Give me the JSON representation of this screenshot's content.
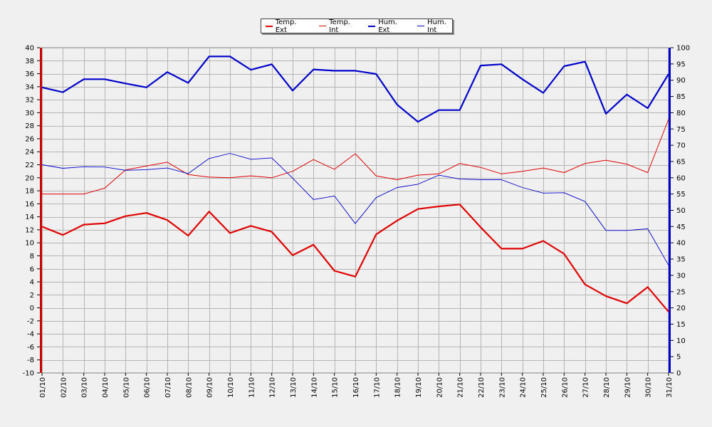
{
  "chart_data": {
    "type": "line",
    "categories": [
      "01/10",
      "02/10",
      "03/10",
      "04/10",
      "05/10",
      "06/10",
      "07/10",
      "08/10",
      "09/10",
      "10/10",
      "11/10",
      "12/10",
      "13/10",
      "14/10",
      "15/10",
      "16/10",
      "17/10",
      "18/10",
      "19/10",
      "20/10",
      "21/10",
      "22/10",
      "23/10",
      "24/10",
      "25/10",
      "26/10",
      "27/10",
      "28/10",
      "29/10",
      "30/10",
      "31/10"
    ],
    "y_left": {
      "min": -10,
      "max": 40,
      "step": 2,
      "color": "#cc0000"
    },
    "y_right": {
      "min": 0,
      "max": 100,
      "step": 5,
      "color": "#0000cc"
    },
    "grid": true,
    "legend_position": "top-center",
    "series": [
      {
        "name": "Temp. Ext",
        "axis": "left",
        "color": "#e00000",
        "width": 2.2,
        "values": [
          12.5,
          11.2,
          12.8,
          13.0,
          14.1,
          14.6,
          13.5,
          11.1,
          14.8,
          11.5,
          12.6,
          11.7,
          8.1,
          9.7,
          5.7,
          4.8,
          11.3,
          13.4,
          15.2,
          15.6,
          15.9,
          12.4,
          9.1,
          9.1,
          10.3,
          8.3,
          3.6,
          1.8,
          0.7,
          3.2,
          -0.6
        ]
      },
      {
        "name": "Temp. Int",
        "axis": "left",
        "color": "#e00000",
        "width": 1,
        "values": [
          17.5,
          17.5,
          17.5,
          18.4,
          21.2,
          21.8,
          22.4,
          20.5,
          20.1,
          20.0,
          20.3,
          20.0,
          21.0,
          22.8,
          21.3,
          23.7,
          20.3,
          19.7,
          20.4,
          20.6,
          22.2,
          21.6,
          20.6,
          21.0,
          21.5,
          20.8,
          22.2,
          22.7,
          22.1,
          20.8,
          29.0
        ]
      },
      {
        "name": "Hum. Ext",
        "axis": "right",
        "color": "#0000cc",
        "width": 2.2,
        "values": [
          87.8,
          86.3,
          90.3,
          90.3,
          89.0,
          87.8,
          92.5,
          89.2,
          97.3,
          97.3,
          93.2,
          94.9,
          86.8,
          93.3,
          92.9,
          92.9,
          91.9,
          82.5,
          77.2,
          80.8,
          80.8,
          94.5,
          94.9,
          90.3,
          86.1,
          94.3,
          95.7,
          79.7,
          85.6,
          81.4,
          91.9
        ]
      },
      {
        "name": "Hum. Int",
        "axis": "right",
        "color": "#0000cc",
        "width": 0.9,
        "values": [
          64.0,
          62.9,
          63.4,
          63.3,
          62.3,
          62.5,
          63.0,
          61.3,
          65.9,
          67.5,
          65.7,
          66.1,
          59.9,
          53.3,
          54.4,
          45.9,
          53.9,
          57.0,
          58.0,
          60.8,
          59.6,
          59.4,
          59.4,
          57.0,
          55.3,
          55.4,
          52.7,
          43.8,
          43.8,
          44.3,
          33.1
        ]
      }
    ]
  }
}
